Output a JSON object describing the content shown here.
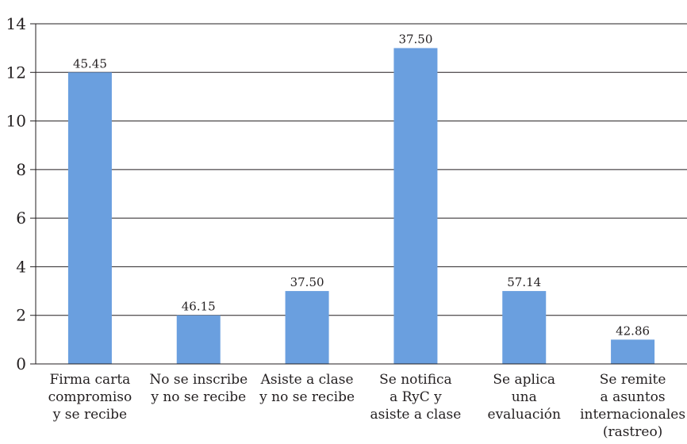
{
  "chart_data": {
    "type": "bar",
    "categories": [
      [
        "Firma carta",
        "compromiso",
        "y se recibe"
      ],
      [
        "No se inscribe",
        "y no se recibe"
      ],
      [
        "Asiste a clase",
        "y no se recibe"
      ],
      [
        "Se notifica",
        "a RyC y",
        "asiste a clase"
      ],
      [
        "Se aplica",
        "una",
        "evaluación"
      ],
      [
        "Se remite",
        "a asuntos",
        "internacionales",
        "(rastreo)"
      ]
    ],
    "values": [
      12,
      2,
      3,
      13,
      3,
      1
    ],
    "data_labels": [
      "45.45",
      "46.15",
      "37.50",
      "37.50",
      "57.14",
      "42.86"
    ],
    "ylim": [
      0,
      14
    ],
    "yticks": [
      0,
      2,
      4,
      6,
      8,
      10,
      12,
      14
    ],
    "grid": true,
    "bar_color": "#6a9fdf",
    "title": "",
    "xlabel": "",
    "ylabel": ""
  }
}
